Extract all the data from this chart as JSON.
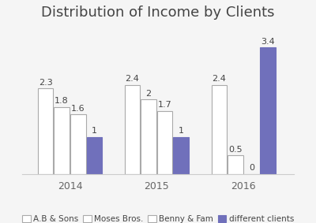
{
  "title": "Distribution of Income by Clients",
  "years": [
    "2014",
    "2015",
    "2016"
  ],
  "series": {
    "A.B & Sons": [
      2.3,
      2.4,
      2.4
    ],
    "Moses Bros.": [
      1.8,
      2.0,
      0.5
    ],
    "Benny & Fam": [
      1.6,
      1.7,
      0.0
    ],
    "different clients": [
      1.0,
      1.0,
      3.4
    ]
  },
  "bar_colors": {
    "A.B & Sons": "#ffffff",
    "Moses Bros.": "#ffffff",
    "Benny & Fam": "#ffffff",
    "different clients": "#7070bb"
  },
  "bar_edgecolors": {
    "A.B & Sons": "#aaaaaa",
    "Moses Bros.": "#aaaaaa",
    "Benny & Fam": "#aaaaaa",
    "different clients": "#7070bb"
  },
  "ylim": [
    0,
    4.0
  ],
  "legend_labels": [
    "A.B & Sons",
    "Moses Bros.",
    "Benny & Fam",
    "different clients"
  ],
  "title_fontsize": 13,
  "label_fontsize": 8,
  "year_fontsize": 9,
  "background_color": "#f5f5f5",
  "plot_background": "#f5f5f5"
}
